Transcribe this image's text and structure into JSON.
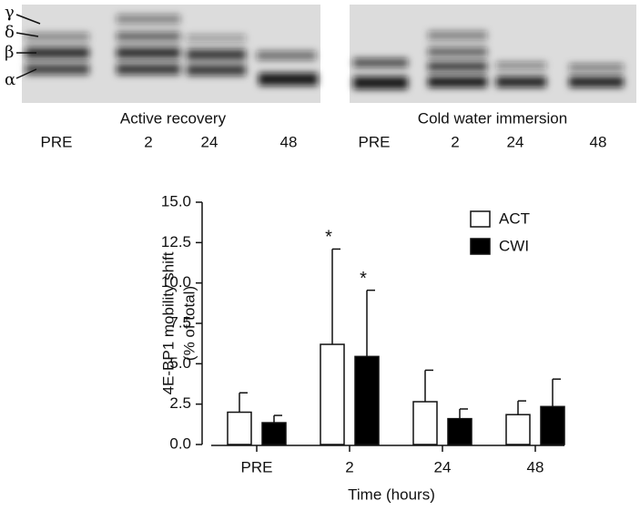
{
  "blot": {
    "bands": [
      "γ",
      "δ",
      "β",
      "α"
    ],
    "panels": [
      {
        "title": "Active recovery",
        "lanes": [
          "PRE",
          "2",
          "24",
          "48"
        ]
      },
      {
        "title": "Cold water immersion",
        "lanes": [
          "PRE",
          "2",
          "24",
          "48"
        ]
      }
    ]
  },
  "chart_data": {
    "type": "bar",
    "ylabel": [
      "4E-BP1 mobility shift",
      "(% of total)"
    ],
    "xlabel": "Time (hours)",
    "categories": [
      "PRE",
      "2",
      "24",
      "48"
    ],
    "series": [
      {
        "name": "ACT",
        "color": "#ffffff",
        "values": [
          2.0,
          6.2,
          2.65,
          1.85
        ],
        "errors": [
          1.2,
          5.9,
          1.95,
          0.85
        ],
        "annotations": [
          null,
          "*",
          null,
          null
        ]
      },
      {
        "name": "CWI",
        "color": "#000000",
        "values": [
          1.35,
          5.45,
          1.6,
          2.35
        ],
        "errors": [
          0.45,
          4.1,
          0.6,
          1.7
        ],
        "annotations": [
          null,
          "*",
          null,
          null
        ]
      }
    ],
    "ylim": [
      0,
      15
    ],
    "yticks": [
      {
        "value": 0,
        "label": "0.0"
      },
      {
        "value": 2.5,
        "label": "2.5"
      },
      {
        "value": 5,
        "label": "5.0"
      },
      {
        "value": 7.5,
        "label": "7.5"
      },
      {
        "value": 10,
        "label": "10.0"
      },
      {
        "value": 12.5,
        "label": "12.5"
      },
      {
        "value": 15,
        "label": "15.0"
      }
    ],
    "legend": "top-right"
  }
}
